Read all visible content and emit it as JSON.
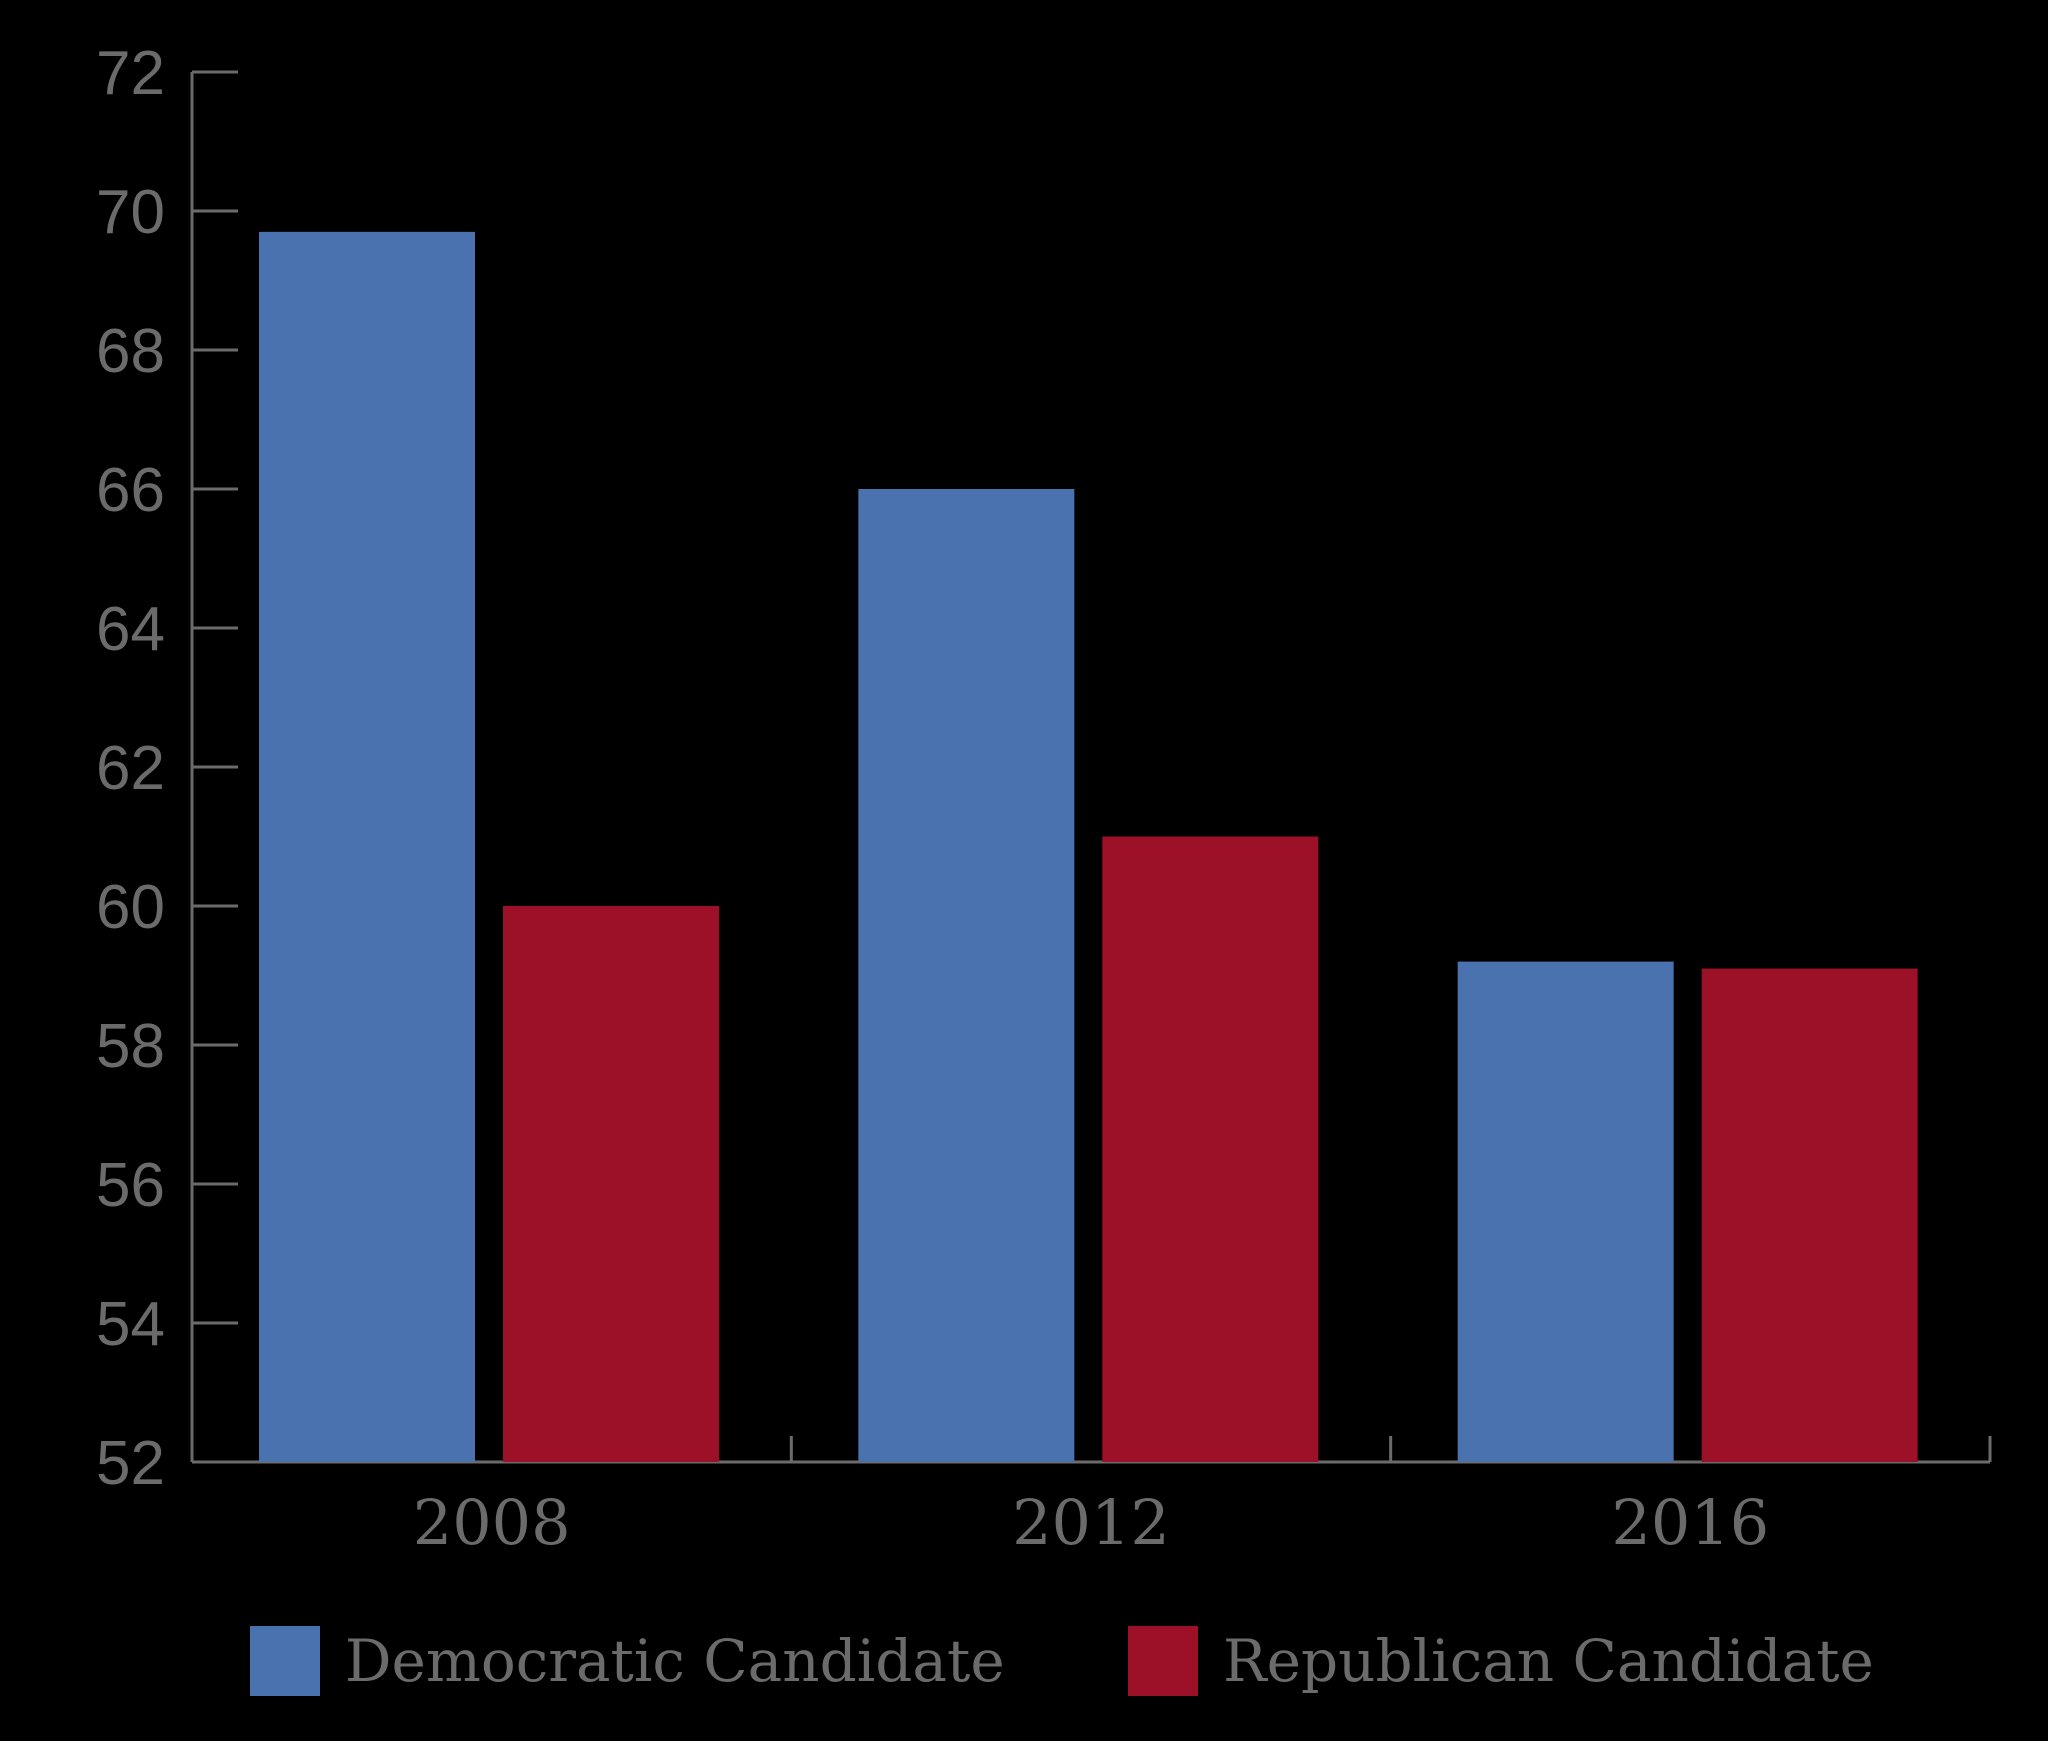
{
  "chart_data": {
    "type": "bar",
    "categories": [
      "2008",
      "2012",
      "2016"
    ],
    "series": [
      {
        "name": "Democratic Candidate",
        "color": "#4a72ae",
        "values": [
          69.7,
          66.0,
          59.2
        ]
      },
      {
        "name": "Republican Candidate",
        "color": "#9c1028",
        "values": [
          60.0,
          61.0,
          59.1
        ]
      }
    ],
    "ylim": [
      52,
      72
    ],
    "yticks": [
      52,
      54,
      56,
      58,
      60,
      62,
      64,
      66,
      68,
      70,
      72
    ],
    "title": "",
    "xlabel": "",
    "ylabel": "",
    "grid": false,
    "legend_position": "bottom",
    "axis_color": "#6b6b6b",
    "background": "#000000"
  }
}
